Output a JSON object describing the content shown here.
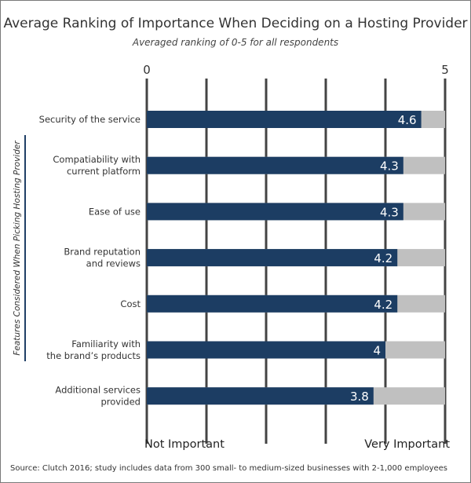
{
  "chart_data": {
    "type": "bar",
    "orientation": "horizontal",
    "title": "Average Ranking of Importance When Deciding on a Hosting Provider",
    "subtitle": "Averaged ranking of 0-5 for all respondents",
    "categories": [
      [
        "Security of the service"
      ],
      [
        "Compatiability with",
        "current platform"
      ],
      [
        "Ease of use"
      ],
      [
        "Brand reputation",
        "and reviews"
      ],
      [
        "Cost"
      ],
      [
        "Familiarity with",
        "the brand’s products"
      ],
      [
        "Additional services",
        "provided"
      ]
    ],
    "values": [
      4.6,
      4.3,
      4.3,
      4.2,
      4.2,
      4,
      3.8
    ],
    "value_labels": [
      "4.6",
      "4.3",
      "4.3",
      "4.2",
      "4.2",
      "4",
      "3.8"
    ],
    "xlim": [
      0,
      5
    ],
    "x_tick_labels": [
      "0",
      "5"
    ],
    "x_gridlines": [
      0,
      1,
      2,
      3,
      4,
      5
    ],
    "x_axis_left_label": "Not Important",
    "x_axis_right_label": "Very Important",
    "ylabel": "Features Considered When Picking Hosting Provider",
    "colors": {
      "bar": "#1c3d63",
      "track": "#c0c0c0",
      "grid": "#444444"
    }
  },
  "source": "Source: Clutch 2016; study includes data from 300 small- to medium-sized businesses with 2-1,000 employees"
}
